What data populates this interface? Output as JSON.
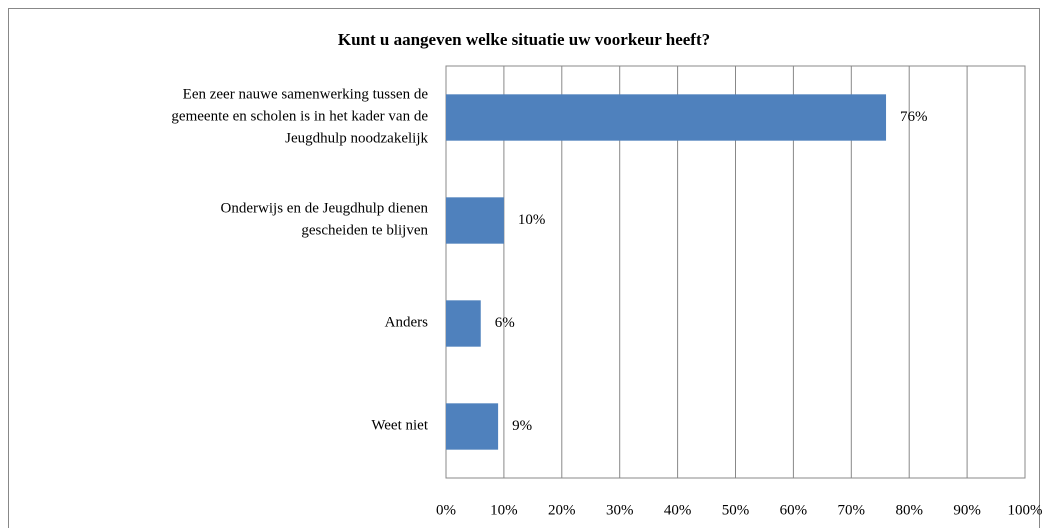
{
  "chart_data": {
    "type": "bar",
    "orientation": "horizontal",
    "title": "Kunt u aangeven welke situatie uw voorkeur heeft?",
    "categories": [
      "Een zeer nauwe samenwerking tussen de gemeente en scholen is in het kader van de Jeugdhulp noodzakelijk",
      "Onderwijs en de Jeugdhulp dienen gescheiden te blijven",
      "Anders",
      "Weet niet"
    ],
    "values": [
      76,
      10,
      6,
      9
    ],
    "value_labels": [
      "76%",
      "10%",
      "6%",
      "9%"
    ],
    "color": "#4f81bd",
    "xlim": [
      0,
      100
    ],
    "xticks": [
      {
        "value": 0,
        "label": "0%"
      },
      {
        "value": 10,
        "label": "10%"
      },
      {
        "value": 20,
        "label": "20%"
      },
      {
        "value": 30,
        "label": "30%"
      },
      {
        "value": 40,
        "label": "40%"
      },
      {
        "value": 50,
        "label": "50%"
      },
      {
        "value": 60,
        "label": "60%"
      },
      {
        "value": 70,
        "label": "70%"
      },
      {
        "value": 80,
        "label": "80%"
      },
      {
        "value": 90,
        "label": "90%"
      },
      {
        "value": 100,
        "label": "100%"
      }
    ],
    "grid": true
  }
}
